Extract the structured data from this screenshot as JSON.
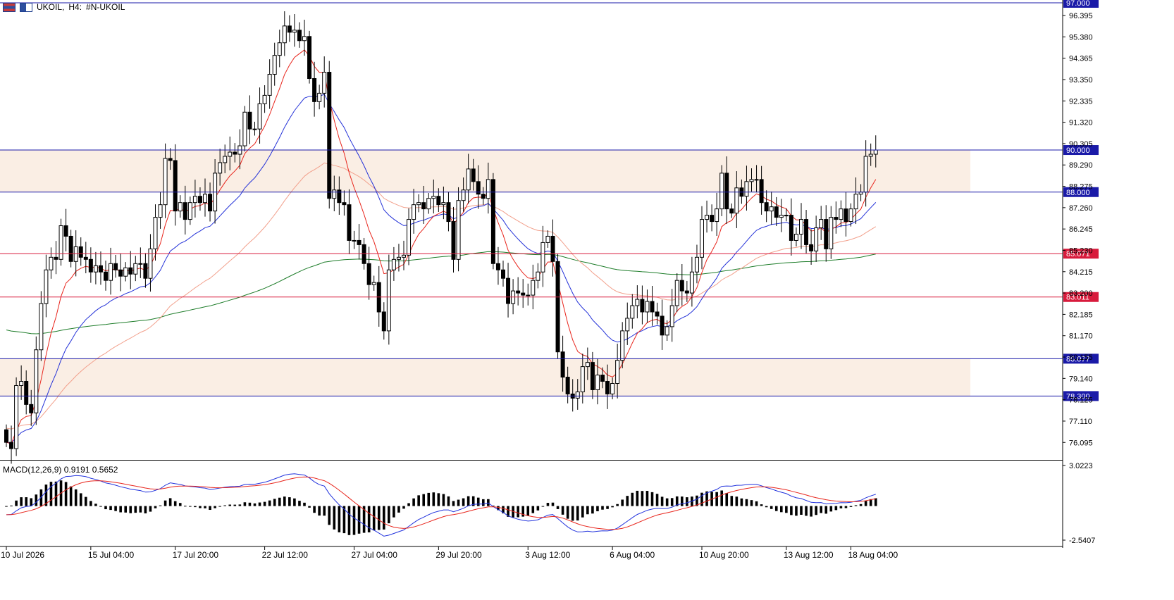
{
  "window": {
    "symbol": "UKOIL",
    "timeframe": "H4",
    "instrument": "#N-UKOIL"
  },
  "macd": {
    "label": "MACD(12,26,9)",
    "main_value": "0.9191",
    "signal_value": "0.5652",
    "axis_top": "3.0223",
    "axis_bottom": "-2.5407"
  },
  "colors": {
    "up_candle": "#ffffff",
    "down_candle": "#000000",
    "zone_fill": "#faeee4",
    "resistance_line": "#1a1aa8",
    "support_line": "#d81b3c",
    "ma_fast": "#e8251c",
    "ma_mid": "#2432d8",
    "ma_slow": "#f2a08c",
    "ma_long": "#1e7d2a",
    "macd_line": "#2233dd",
    "signal_line": "#e8251c"
  },
  "chart_data": {
    "type": "candlestick",
    "ylim": [
      75.3,
      97.0
    ],
    "price_ticks": [
      "96.395",
      "95.380",
      "94.365",
      "93.350",
      "92.335",
      "91.320",
      "90.305",
      "89.290",
      "88.275",
      "87.260",
      "86.245",
      "85.230",
      "84.215",
      "83.200",
      "82.185",
      "81.170",
      "80.155",
      "79.140",
      "78.125",
      "77.110",
      "76.095"
    ],
    "time_labels": [
      "10 Jul 2026",
      "15 Jul 04:00",
      "17 Jul 20:00",
      "22 Jul 12:00",
      "27 Jul 04:00",
      "29 Jul 20:00",
      "3 Aug 12:00",
      "6 Aug 04:00",
      "10 Aug 20:00",
      "13 Aug 12:00",
      "18 Aug 04:00"
    ],
    "levels": [
      {
        "label": "97.000",
        "value": 97.0,
        "kind": "resistance"
      },
      {
        "label": "90.000",
        "value": 90.0,
        "kind": "resistance"
      },
      {
        "label": "88.000",
        "value": 88.0,
        "kind": "resistance"
      },
      {
        "label": "85.071",
        "value": 85.071,
        "kind": "support"
      },
      {
        "label": "83.011",
        "value": 83.011,
        "kind": "support"
      },
      {
        "label": "80.077",
        "value": 80.077,
        "kind": "resistance"
      },
      {
        "label": "78.300",
        "value": 78.3,
        "kind": "resistance"
      }
    ],
    "zones": [
      [
        88.0,
        90.0
      ],
      [
        78.3,
        80.077
      ]
    ],
    "closes": [
      76.1,
      75.8,
      78.8,
      79.0,
      77.9,
      77.5,
      80.5,
      82.7,
      84.3,
      84.9,
      84.8,
      86.4,
      85.9,
      84.7,
      85.4,
      84.9,
      84.8,
      84.2,
      84.5,
      84.2,
      83.8,
      84.6,
      84.3,
      84.0,
      84.4,
      84.1,
      84.6,
      84.6,
      83.9,
      85.3,
      86.8,
      87.4,
      89.6,
      89.5,
      87.1,
      87.5,
      86.7,
      87.5,
      87.8,
      87.5,
      87.9,
      87.1,
      88.9,
      89.4,
      89.7,
      89.9,
      89.8,
      90.2,
      91.8,
      91.0,
      91.0,
      92.2,
      92.6,
      93.6,
      94.5,
      95.1,
      95.9,
      95.6,
      95.7,
      95.2,
      95.4,
      93.4,
      92.3,
      92.7,
      93.7,
      87.7,
      88.1,
      87.5,
      87.4,
      85.7,
      85.7,
      85.5,
      84.6,
      83.6,
      83.7,
      82.3,
      81.4,
      84.3,
      84.8,
      84.9,
      85.0,
      86.7,
      87.4,
      87.5,
      87.2,
      87.7,
      87.8,
      87.4,
      87.5,
      86.6,
      84.8,
      87.6,
      88.1,
      89.1,
      88.5,
      87.9,
      87.7,
      88.6,
      84.6,
      84.3,
      83.9,
      82.7,
      83.3,
      83.2,
      83.1,
      83.1,
      83.8,
      84.2,
      85.6,
      85.9,
      84.7,
      80.4,
      79.2,
      78.4,
      78.2,
      78.5,
      79.7,
      79.9,
      78.6,
      79.3,
      79.0,
      78.4,
      78.9,
      80.0,
      81.4,
      82.0,
      82.6,
      82.9,
      82.3,
      82.8,
      82.3,
      82.1,
      81.2,
      81.6,
      82.6,
      83.8,
      83.3,
      83.2,
      84.2,
      84.9,
      86.7,
      86.9,
      86.6,
      87.2,
      88.9,
      87.2,
      87.0,
      88.2,
      87.8,
      88.5,
      88.6,
      88.6,
      87.5,
      87.1,
      87.3,
      86.8,
      86.9,
      86.9,
      85.7,
      86.0,
      86.7,
      85.5,
      85.2,
      86.3,
      86.7,
      85.3,
      86.8,
      86.7,
      87.2,
      86.6,
      87.2,
      87.9,
      88.0,
      89.7,
      89.8,
      90.0
    ]
  }
}
